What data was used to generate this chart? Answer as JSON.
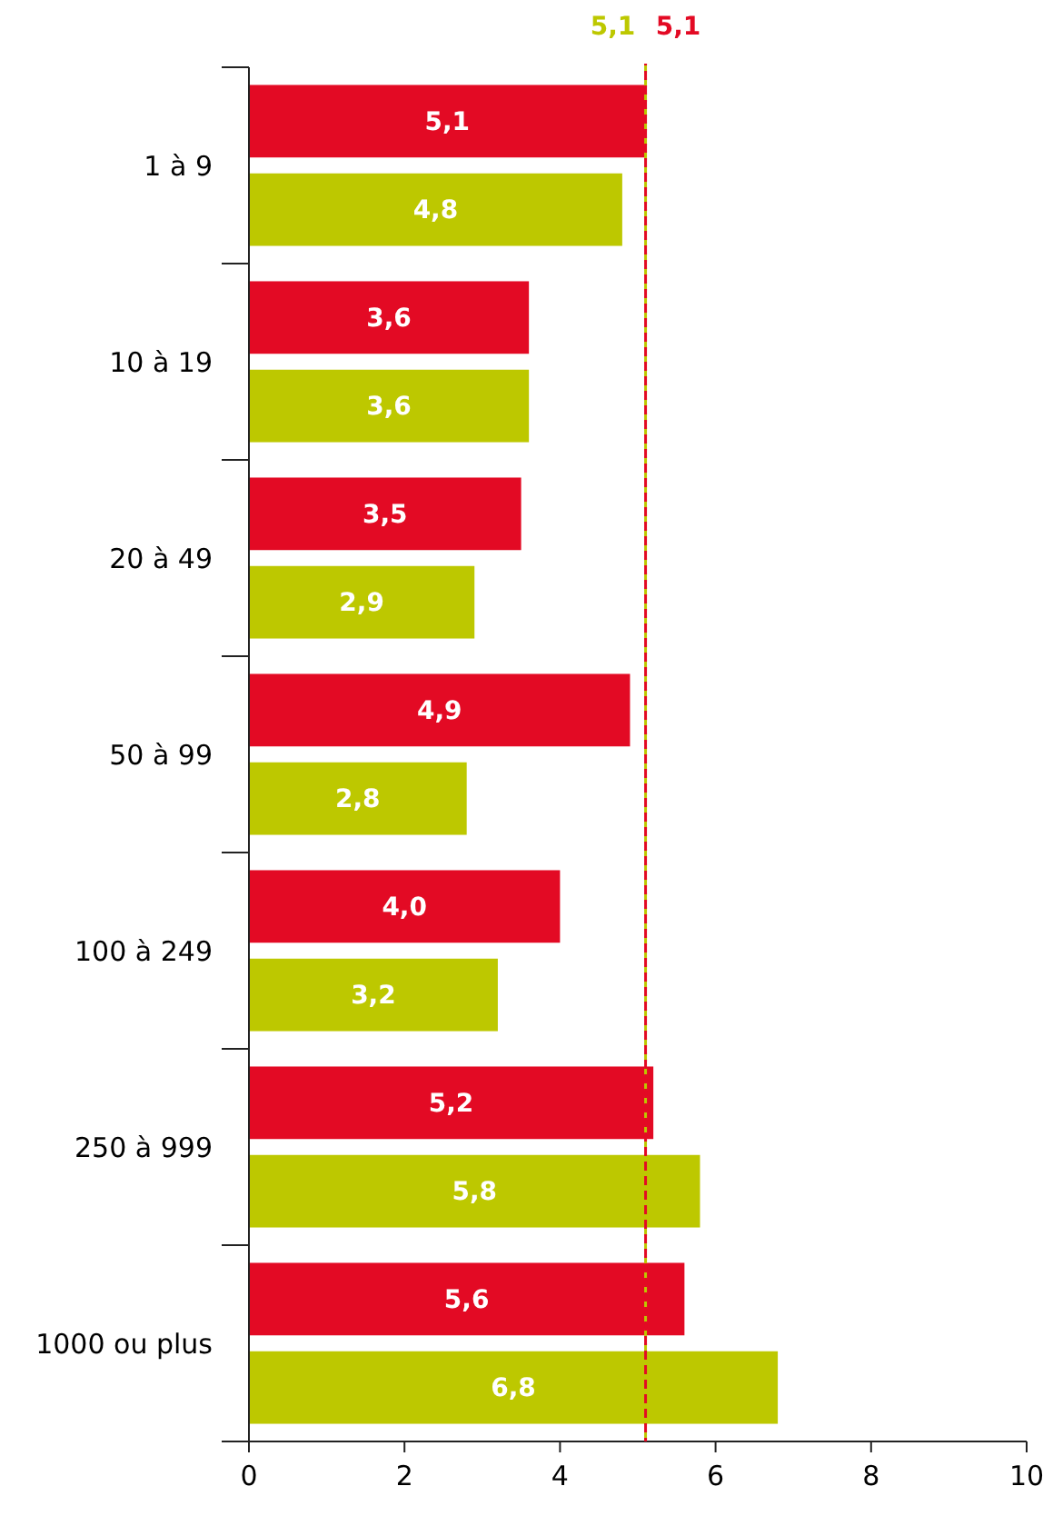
{
  "chart_data": {
    "type": "bar",
    "orientation": "horizontal",
    "categories": [
      "1 à 9",
      "10 à 19",
      "20 à 49",
      "50 à 99",
      "100 à 249",
      "250 à 999",
      "1000 ou plus"
    ],
    "series": [
      {
        "color": "#e30a24",
        "values": [
          5.1,
          3.6,
          3.5,
          4.9,
          4.0,
          5.2,
          5.6
        ],
        "value_labels": [
          "5,1",
          "3,6",
          "3,5",
          "4,9",
          "4,0",
          "5,2",
          "5,6"
        ]
      },
      {
        "color": "#bdc800",
        "values": [
          4.8,
          3.6,
          2.9,
          2.8,
          3.2,
          5.8,
          6.8
        ],
        "value_labels": [
          "4,8",
          "3,6",
          "2,9",
          "2,8",
          "3,2",
          "5,8",
          "6,8"
        ]
      }
    ],
    "xlim": [
      0,
      10
    ],
    "xticks": [
      0,
      2,
      4,
      6,
      8,
      10
    ],
    "grid": false,
    "ref_lines": [
      {
        "axis": "x",
        "value": 5.1,
        "label": "5,1",
        "color": "#bdc800",
        "line_style": "dashed"
      },
      {
        "axis": "x",
        "value": 5.1,
        "label": "5,1",
        "color": "#e30a24",
        "line_style": "dashed"
      }
    ]
  }
}
